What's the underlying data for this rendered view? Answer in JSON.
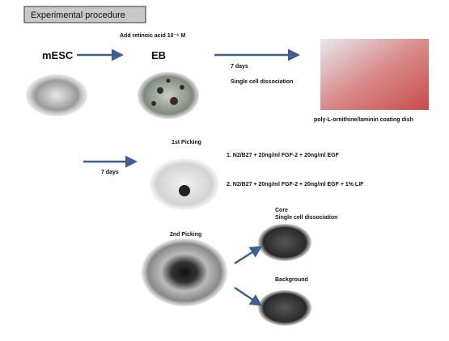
{
  "header": {
    "title": "Experimental procedure"
  },
  "stage1": {
    "start": "mESC",
    "treatment": "Add retinoic acid 10⁻⁶ M",
    "result": "EB",
    "arrow_time": "7 days",
    "arrow_step": "Single cell dissociation",
    "dish": "poly-L-ornithine/laminin coating dish"
  },
  "stage2": {
    "label": "1st Picking",
    "arrow_time": "7 days",
    "media": [
      "1.  N2/B27 + 20ng/ml FGF-2 + 20ng/ml EGF",
      "2.  N2/B27 + 20ng/ml FGF-2 + 20ng/ml EGF + 1% LIF"
    ]
  },
  "stage3": {
    "label": "2nd Picking",
    "branches": [
      {
        "title": "Core",
        "step": "Single cell dissociation"
      },
      {
        "title": "Background"
      }
    ]
  }
}
